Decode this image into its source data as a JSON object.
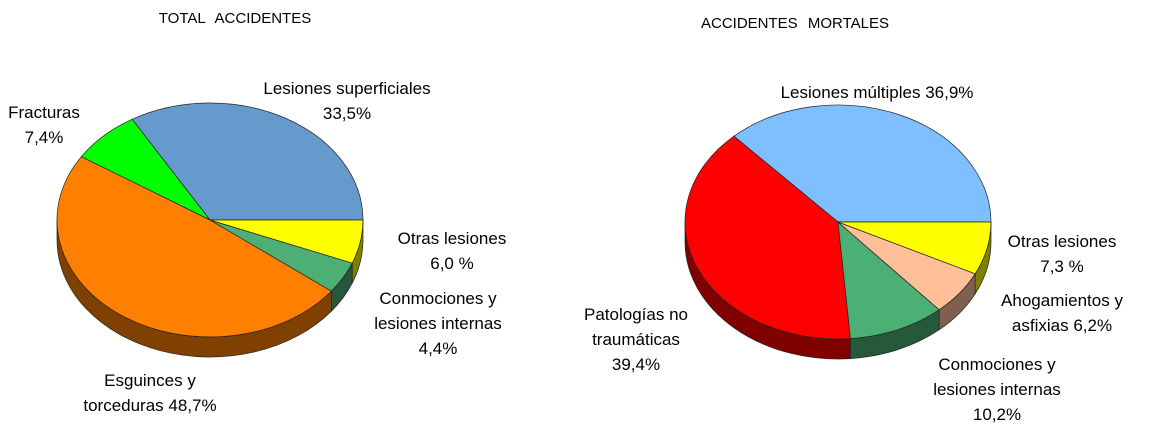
{
  "chart_data": [
    {
      "type": "pie",
      "title": "TOTAL ACCIDENTES",
      "categories": [
        "Lesiones superficiales",
        "Fracturas",
        "Esguinces y torceduras",
        "Conmociones y lesiones internas",
        "Otras lesiones"
      ],
      "values": [
        33.5,
        7.4,
        48.7,
        4.4,
        6.0
      ],
      "value_labels": [
        "33,5%",
        "7,4%",
        "48,7%",
        "4,4%",
        "6,0 %"
      ],
      "colors": [
        "#6699cc",
        "#00ff00",
        "#ff8000",
        "#4daf74",
        "#ffff00"
      ]
    },
    {
      "type": "pie",
      "title": "ACCIDENTES MORTALES",
      "categories": [
        "Lesiones múltiples",
        "Patologías no traumáticas",
        "Conmociones y lesiones internas",
        "Ahogamientos y asfixias",
        "Otras lesiones"
      ],
      "values": [
        36.9,
        39.4,
        10.2,
        6.2,
        7.3
      ],
      "value_labels": [
        "36,9%",
        "39,4%",
        "10,2%",
        "6,2%",
        "7,3 %"
      ],
      "colors": [
        "#80bfff",
        "#ff0000",
        "#4caf73",
        "#ffbf99",
        "#ffff00"
      ]
    }
  ]
}
